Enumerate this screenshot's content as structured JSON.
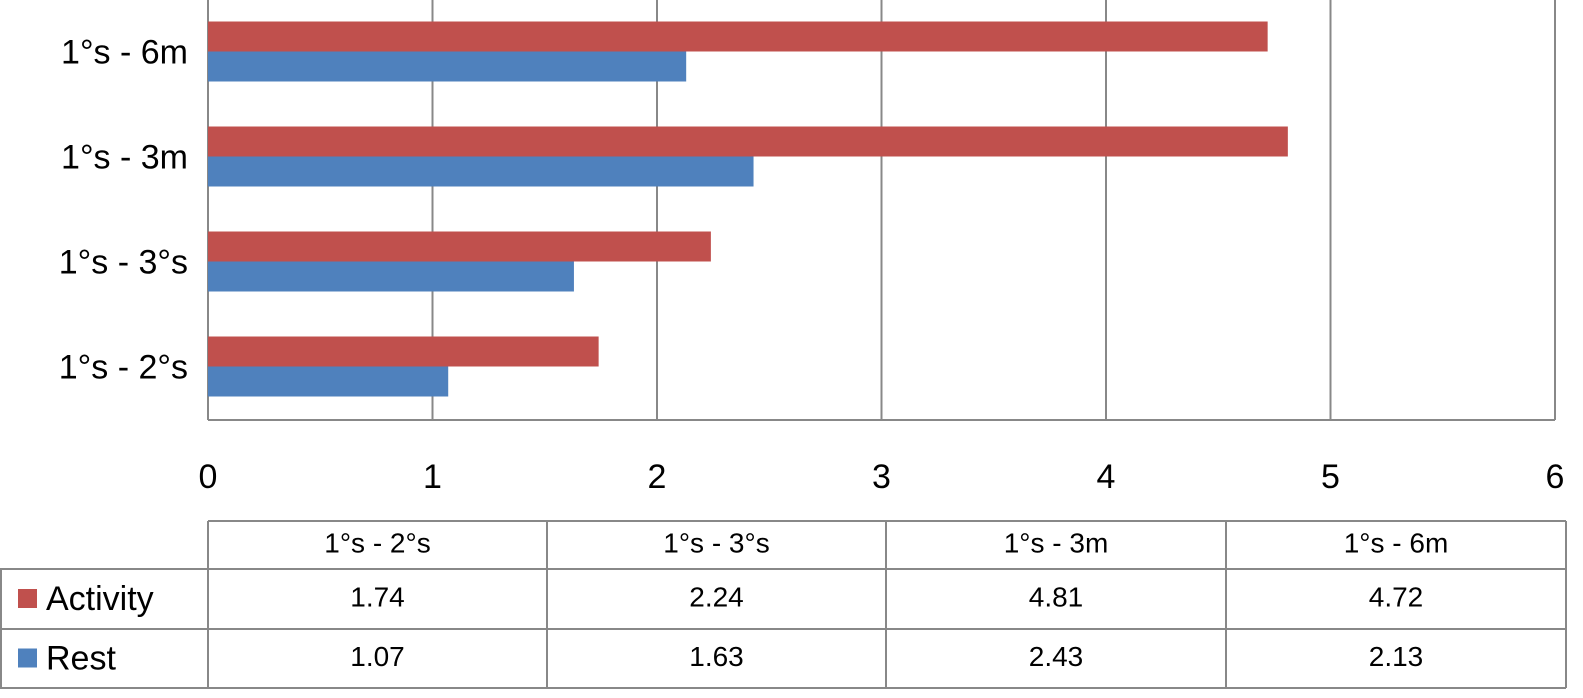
{
  "chart_data": {
    "type": "bar",
    "orientation": "horizontal",
    "categories": [
      "1°s - 2°s",
      "1°s - 3°s",
      "1°s - 3m",
      "1°s - 6m"
    ],
    "series": [
      {
        "name": "Activity",
        "color": "#c0504d",
        "values": [
          1.74,
          2.24,
          4.81,
          4.72
        ]
      },
      {
        "name": "Rest",
        "color": "#4f81bd",
        "values": [
          1.07,
          1.63,
          2.43,
          2.13
        ]
      }
    ],
    "xlim": [
      0,
      6
    ],
    "xticks": [
      0,
      1,
      2,
      3,
      4,
      5,
      6
    ],
    "grid": true,
    "data_table": true
  }
}
